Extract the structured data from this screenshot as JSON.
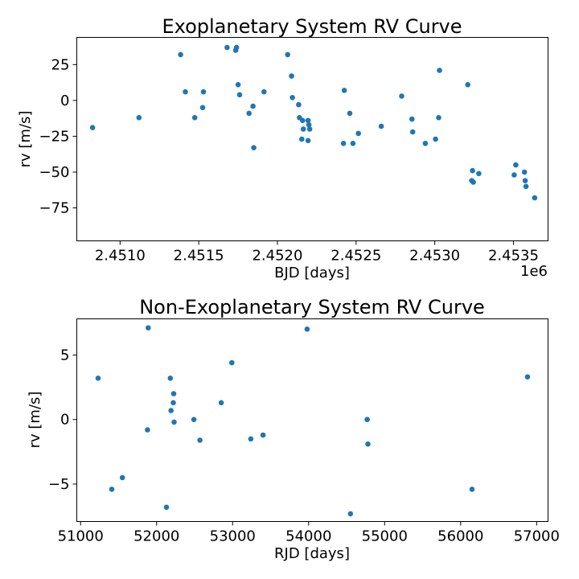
{
  "chart_data": [
    {
      "type": "scatter",
      "title": "Exoplanetary System RV Curve",
      "xlabel": "BJD [days]",
      "ylabel": "rv [m/s]",
      "x_offset_label": "1e6",
      "xlim": [
        2450725,
        2453720
      ],
      "ylim": [
        -98,
        44
      ],
      "xticks": [
        2451000,
        2451500,
        2452000,
        2452500,
        2453000,
        2453500
      ],
      "xtick_labels": [
        "2.4510",
        "2.4515",
        "2.4520",
        "2.4525",
        "2.4530",
        "2.4535"
      ],
      "yticks": [
        25,
        0,
        -25,
        -50,
        -75
      ],
      "ytick_labels": [
        "25",
        "0",
        "−25",
        "−50",
        "−75"
      ],
      "color": "#1f77b4",
      "x": [
        2450825,
        2451120,
        2451385,
        2451415,
        2451475,
        2451525,
        2451530,
        2451680,
        2451735,
        2451740,
        2451750,
        2451760,
        2451820,
        2451845,
        2451850,
        2451915,
        2452065,
        2452090,
        2452095,
        2452135,
        2452140,
        2452155,
        2452160,
        2452165,
        2452195,
        2452195,
        2452200,
        2452205,
        2452420,
        2452425,
        2452460,
        2452480,
        2452515,
        2452660,
        2452790,
        2452855,
        2452860,
        2452940,
        2453005,
        2453025,
        2453030,
        2453210,
        2453235,
        2453240,
        2453245,
        2453280,
        2453505,
        2453515,
        2453570,
        2453575,
        2453580,
        2453635
      ],
      "y": [
        -19,
        -12,
        32,
        6,
        -12,
        -5,
        6,
        37,
        35,
        37,
        11,
        4,
        -9,
        -4,
        -33,
        6,
        32,
        17,
        2,
        -3,
        -12,
        -27,
        -14,
        -20,
        -28,
        -14,
        -17,
        -20,
        -30,
        7,
        -9,
        -30,
        -23,
        -18,
        3,
        -13,
        -22,
        -30,
        -27,
        -12,
        21,
        11,
        -56,
        -49,
        -57,
        -51,
        -52,
        -45,
        -50,
        -56,
        -60,
        -68
      ]
    },
    {
      "type": "scatter",
      "title": "Non-Exoplanetary System RV Curve",
      "xlabel": "RJD [days]",
      "ylabel": "rv [m/s]",
      "xlim": [
        50950,
        57150
      ],
      "ylim": [
        -7.9,
        7.8
      ],
      "xticks": [
        51000,
        52000,
        53000,
        54000,
        55000,
        56000,
        57000
      ],
      "xtick_labels": [
        "51000",
        "52000",
        "53000",
        "54000",
        "55000",
        "56000",
        "57000"
      ],
      "yticks": [
        5,
        0,
        -5
      ],
      "ytick_labels": [
        "5",
        "0",
        "−5"
      ],
      "color": "#1f77b4",
      "x": [
        51230,
        51410,
        51550,
        51880,
        51890,
        52130,
        52180,
        52190,
        52220,
        52225,
        52230,
        52490,
        52570,
        52850,
        52990,
        53240,
        53400,
        53980,
        54550,
        54770,
        54780,
        56150,
        56880
      ],
      "y": [
        3.2,
        -5.4,
        -4.5,
        -0.8,
        7.1,
        -6.8,
        3.2,
        0.7,
        1.3,
        2.0,
        -0.2,
        0.0,
        -1.6,
        1.3,
        4.4,
        -1.5,
        -1.2,
        7.0,
        -7.3,
        0.0,
        -1.9,
        -5.4,
        3.3
      ]
    }
  ]
}
